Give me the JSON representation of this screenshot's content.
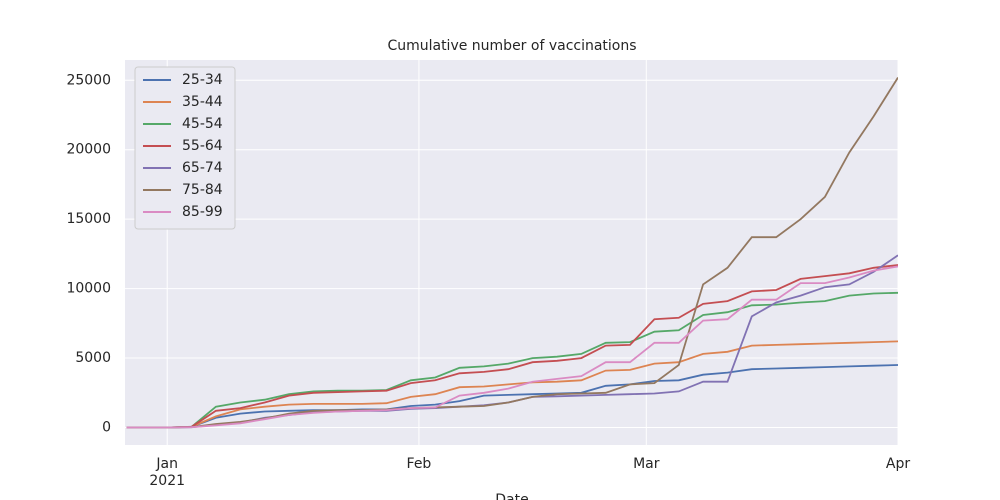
{
  "chart_data": {
    "type": "line",
    "title": "Cumulative number of vaccinations",
    "x_label": "Date",
    "x": [
      -5,
      0,
      3,
      6,
      9,
      12,
      15,
      18,
      21,
      24,
      27,
      30,
      33,
      36,
      39,
      42,
      45,
      48,
      51,
      54,
      57,
      60,
      63,
      66,
      69,
      72,
      75,
      78,
      81,
      84,
      87,
      90
    ],
    "xlim": [
      -5.2,
      90
    ],
    "xticks": [
      {
        "value": 0,
        "label": "Jan 2021"
      },
      {
        "value": 31,
        "label": "Feb"
      },
      {
        "value": 59,
        "label": "Mar"
      },
      {
        "value": 90,
        "label": "Apr"
      }
    ],
    "ylim": [
      -1260,
      26460
    ],
    "yticks": [
      0,
      5000,
      10000,
      15000,
      20000,
      25000
    ],
    "grid": true,
    "legend": "upper left",
    "series": [
      {
        "name": "25-34",
        "color": "#4c72b0",
        "values": [
          0,
          0,
          50,
          700,
          1000,
          1150,
          1200,
          1250,
          1250,
          1300,
          1300,
          1550,
          1650,
          1900,
          2300,
          2350,
          2400,
          2450,
          2500,
          3000,
          3100,
          3350,
          3400,
          3800,
          3950,
          4200,
          4250,
          4300,
          4350,
          4400,
          4450,
          4500
        ]
      },
      {
        "name": "35-44",
        "color": "#dd8452",
        "values": [
          0,
          0,
          50,
          800,
          1300,
          1500,
          1650,
          1700,
          1700,
          1700,
          1750,
          2200,
          2400,
          2900,
          2950,
          3100,
          3250,
          3300,
          3400,
          4100,
          4150,
          4600,
          4700,
          5300,
          5450,
          5900,
          5950,
          6000,
          6050,
          6100,
          6150,
          6200
        ]
      },
      {
        "name": "45-54",
        "color": "#55a868",
        "values": [
          0,
          0,
          50,
          1500,
          1800,
          2000,
          2400,
          2600,
          2650,
          2650,
          2700,
          3400,
          3600,
          4300,
          4400,
          4600,
          5000,
          5100,
          5300,
          6100,
          6150,
          6900,
          7000,
          8100,
          8300,
          8800,
          8850,
          9000,
          9100,
          9500,
          9650,
          9700
        ]
      },
      {
        "name": "55-64",
        "color": "#c44e52",
        "values": [
          0,
          0,
          50,
          1200,
          1400,
          1800,
          2300,
          2500,
          2550,
          2600,
          2650,
          3200,
          3400,
          3900,
          4000,
          4200,
          4700,
          4800,
          5000,
          5900,
          5950,
          7800,
          7900,
          8900,
          9100,
          9800,
          9900,
          10700,
          10900,
          11100,
          11500,
          11700
        ]
      },
      {
        "name": "65-74",
        "color": "#8172b3",
        "values": [
          0,
          0,
          20,
          200,
          350,
          700,
          900,
          1100,
          1150,
          1200,
          1200,
          1350,
          1400,
          1500,
          1600,
          1800,
          2200,
          2250,
          2300,
          2350,
          2400,
          2450,
          2600,
          3300,
          3300,
          8000,
          9000,
          9500,
          10100,
          10300,
          11200,
          12400
        ]
      },
      {
        "name": "75-84",
        "color": "#937860",
        "values": [
          0,
          0,
          30,
          250,
          400,
          650,
          1000,
          1200,
          1250,
          1250,
          1300,
          1400,
          1450,
          1500,
          1550,
          1800,
          2200,
          2400,
          2450,
          2500,
          3100,
          3200,
          4500,
          10300,
          11500,
          13700,
          13700,
          15000,
          16600,
          19800,
          22400,
          25200
        ]
      },
      {
        "name": "85-99",
        "color": "#da8bc3",
        "values": [
          0,
          0,
          20,
          150,
          300,
          600,
          900,
          1050,
          1150,
          1200,
          1250,
          1400,
          1450,
          2300,
          2500,
          2800,
          3300,
          3500,
          3700,
          4700,
          4700,
          6100,
          6100,
          7700,
          7800,
          9200,
          9200,
          10400,
          10400,
          10800,
          11300,
          11600
        ]
      }
    ]
  }
}
